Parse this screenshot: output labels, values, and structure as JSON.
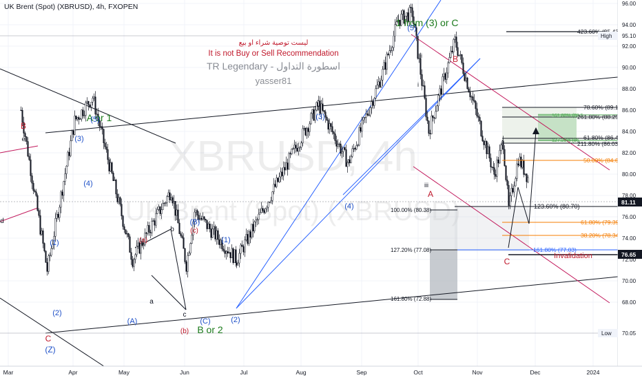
{
  "header": {
    "symbol_title": "UK Brent (Spot) (XBRUSD), 4h, FXOPEN"
  },
  "notes": {
    "arabic_disclaimer": "ليست توصية شراء او بيع",
    "disclaimer": "It is not Buy or Sell Recommendation",
    "author_line": "TR Legendary - اسطورة التداول",
    "username": "yasser81"
  },
  "watermark": {
    "ticker": "XBRUSD, 4h",
    "name": "UK Brent (Spot) (XBRUSD)"
  },
  "price_axis": {
    "ticks": [
      96.0,
      94.0,
      92.0,
      90.0,
      88.0,
      86.0,
      84.0,
      82.0,
      80.0,
      78.0,
      76.0,
      74.0,
      72.0,
      70.0,
      68.0
    ],
    "high_label": "High",
    "high_value": "95.10",
    "low_label": "Low",
    "low_value": "70.05",
    "last_price": "81.11",
    "invalidation_price": "76.65"
  },
  "time_axis": {
    "ticks": [
      "Mar",
      "Apr",
      "May",
      "Jun",
      "Jul",
      "Aug",
      "Sep",
      "Oct",
      "Nov",
      "Dec",
      "2024"
    ]
  },
  "colors": {
    "up_candle": "#131722",
    "down_candle": "#131722",
    "channel_blue": "#2962ff",
    "channel_red": "#c2185b",
    "wave_blue": "#1e50c8",
    "wave_red": "#c0182b",
    "wave_green": "#1b7a1b",
    "fib_orange": "#f57c00",
    "fib_green": "#43a047"
  },
  "wave_labels": [
    {
      "text": "1 from (3) or C",
      "color": "green"
    },
    {
      "text": "(5)",
      "color": "blue"
    },
    {
      "text": "ii",
      "color": "black"
    },
    {
      "text": "i",
      "color": "black"
    },
    {
      "text": "B",
      "color": "red"
    },
    {
      "text": "iii",
      "color": "black"
    },
    {
      "text": "A",
      "color": "red"
    },
    {
      "text": "C",
      "color": "red"
    },
    {
      "text": "Invalidation",
      "color": "red"
    },
    {
      "text": "B",
      "color": "red"
    },
    {
      "text": "d",
      "color": "black"
    },
    {
      "text": "e",
      "color": "black"
    },
    {
      "text": "A or 1",
      "color": "green"
    },
    {
      "text": "(3)",
      "color": "blue"
    },
    {
      "text": "(5)",
      "color": "blue"
    },
    {
      "text": "(4)",
      "color": "blue"
    },
    {
      "text": "(1)",
      "color": "blue"
    },
    {
      "text": "(2)",
      "color": "blue"
    },
    {
      "text": "C",
      "color": "red"
    },
    {
      "text": "(Z)",
      "color": "blue"
    },
    {
      "text": "(a)",
      "color": "red"
    },
    {
      "text": "a",
      "color": "black"
    },
    {
      "text": "b",
      "color": "black"
    },
    {
      "text": "c",
      "color": "black"
    },
    {
      "text": "(A)",
      "color": "blue"
    },
    {
      "text": "(b)",
      "color": "red"
    },
    {
      "text": "(B)",
      "color": "blue"
    },
    {
      "text": "(c)",
      "color": "red"
    },
    {
      "text": "(C)",
      "color": "blue"
    },
    {
      "text": "B or 2",
      "color": "green"
    },
    {
      "text": "(1)",
      "color": "blue"
    },
    {
      "text": "(2)",
      "color": "blue"
    },
    {
      "text": "(3)",
      "color": "blue"
    },
    {
      "text": "(4)",
      "color": "blue"
    }
  ],
  "fib_levels": [
    {
      "label": "423.60% (95.43)",
      "color": "black"
    },
    {
      "label": "78.60% (89.15)",
      "color": "black"
    },
    {
      "label": "161.80% (88.5",
      "color": "green"
    },
    {
      "label": "261.80% (88.25)",
      "color": "black"
    },
    {
      "label": "61.80% (86.48)",
      "color": "black"
    },
    {
      "label": "127.20% (86.",
      "color": "green"
    },
    {
      "label": "211.80% (86.03)",
      "color": "black"
    },
    {
      "label": "50.00% (84.60)",
      "color": "orange"
    },
    {
      "label": "123.60% (80.70)",
      "color": "black"
    },
    {
      "label": "61.80% (79.39)",
      "color": "orange"
    },
    {
      "label": "38.20% (78.34)",
      "color": "orange"
    },
    {
      "label": "161.80% (77.03)",
      "color": "blue"
    },
    {
      "label": "100.00% (80.38)",
      "color": "black"
    },
    {
      "label": "127.20% (77.08)",
      "color": "black"
    },
    {
      "label": "161.80% (72.88)",
      "color": "black"
    }
  ],
  "chart_data": {
    "type": "line",
    "title": "UK Brent (Spot) (XBRUSD), 4h, FXOPEN",
    "xlabel": "",
    "ylabel": "",
    "x": [
      "Mar",
      "Mar",
      "Apr",
      "Apr",
      "May",
      "May",
      "Jun",
      "Jun",
      "Jul",
      "Aug",
      "Aug",
      "Sep",
      "Sep",
      "Oct",
      "Oct",
      "Oct",
      "Nov",
      "Nov",
      "Nov",
      "Nov",
      "Dec"
    ],
    "series": [
      {
        "values": [
          86.0,
          71.0,
          85.0,
          87.2,
          72.0,
          78.5,
          71.5,
          76.5,
          72.0,
          86.5,
          81.0,
          89.5,
          94.5,
          95.1,
          84.0,
          92.5,
          80.0,
          83.0,
          76.7,
          81.5,
          79.4
        ]
      }
    ],
    "ylim": [
      67.0,
      97.0
    ],
    "grid": true,
    "legend": "none"
  }
}
